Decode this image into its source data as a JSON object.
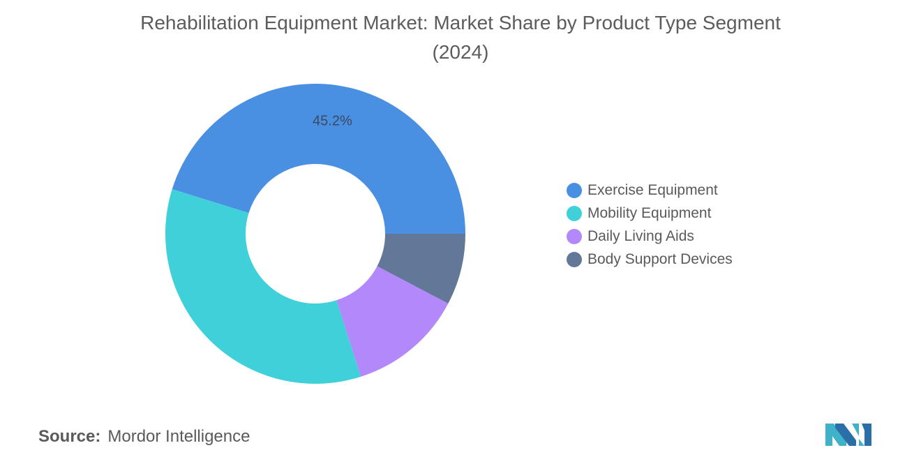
{
  "chart_data": {
    "type": "pie",
    "title": "Rehabilitation Equipment Market: Market Share by Product Type Segment (2024)",
    "categories": [
      "Exercise Equipment",
      "Mobility Equipment",
      "Daily Living Aids",
      "Body Support Devices"
    ],
    "values": [
      45.2,
      34.7,
      12.4,
      7.7
    ],
    "data_labels": [
      "45.2%",
      "",
      "",
      ""
    ],
    "colors": [
      "#4a90e2",
      "#40d0da",
      "#b388fa",
      "#637798"
    ],
    "donut": true,
    "legend_position": "right"
  },
  "source": {
    "label": "Source:",
    "value": "Mordor Intelligence"
  },
  "logo": {
    "icon": "mordor-intelligence-logo-icon",
    "colors": [
      "#3fb1c9",
      "#2a6fa8"
    ]
  }
}
